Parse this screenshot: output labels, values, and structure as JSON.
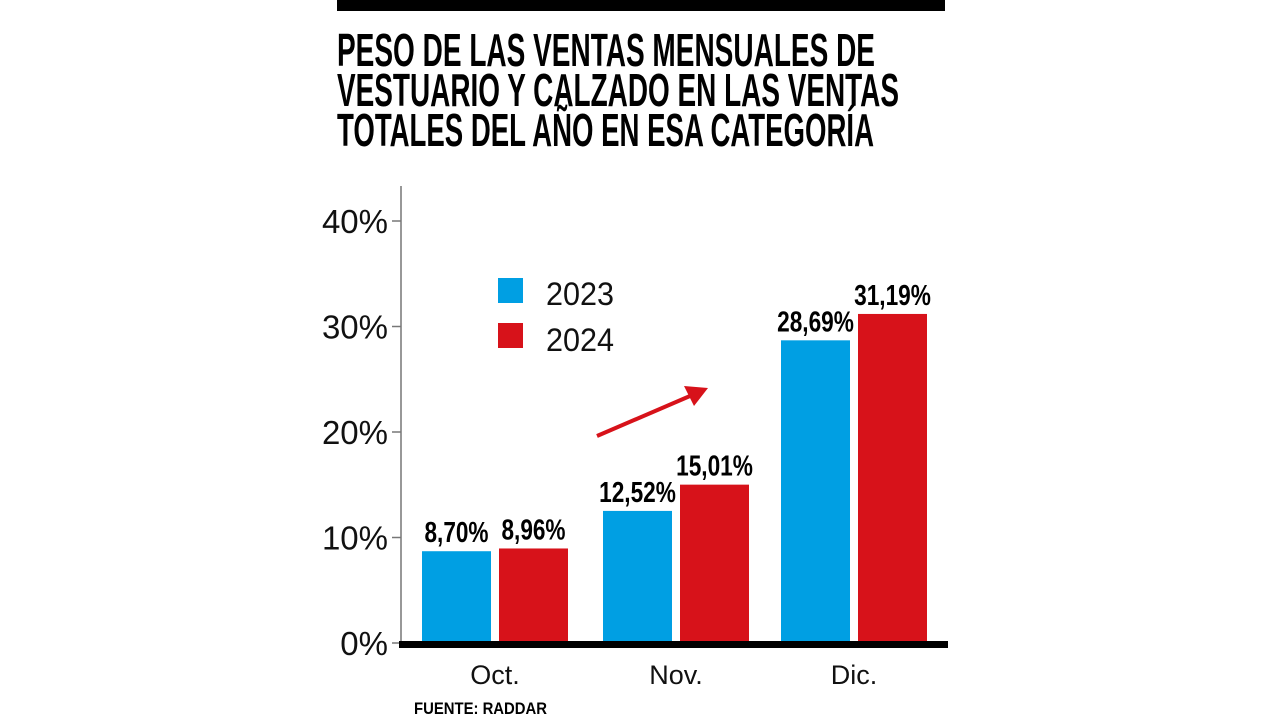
{
  "chart_data": {
    "type": "bar",
    "title_lines": [
      "PESO DE LAS VENTAS MENSUALES DE",
      "VESTUARIO Y CALZADO EN LAS VENTAS",
      "TOTALES DEL AÑO EN ESA CATEGORÍA"
    ],
    "categories": [
      "Oct.",
      "Nov.",
      "Dic."
    ],
    "series": [
      {
        "name": "2023",
        "color": "#009fe3",
        "values": [
          8.7,
          12.52,
          28.69
        ],
        "labels": [
          "8,70%",
          "12,52%",
          "28,69%"
        ]
      },
      {
        "name": "2024",
        "color": "#d7121a",
        "values": [
          8.96,
          15.01,
          31.19
        ],
        "labels": [
          "8,96%",
          "15,01%",
          "31,19%"
        ]
      }
    ],
    "yticks": [
      {
        "value": 0,
        "label": "0%"
      },
      {
        "value": 10,
        "label": "10%"
      },
      {
        "value": 20,
        "label": "20%"
      },
      {
        "value": 30,
        "label": "30%"
      },
      {
        "value": 40,
        "label": "40%"
      }
    ],
    "ylim": [
      0,
      40
    ],
    "xlabel": "",
    "ylabel": "",
    "legend_position": "top-left",
    "grid": false,
    "annotation": "red upward trend arrow",
    "source": "FUENTE: RADDAR"
  }
}
